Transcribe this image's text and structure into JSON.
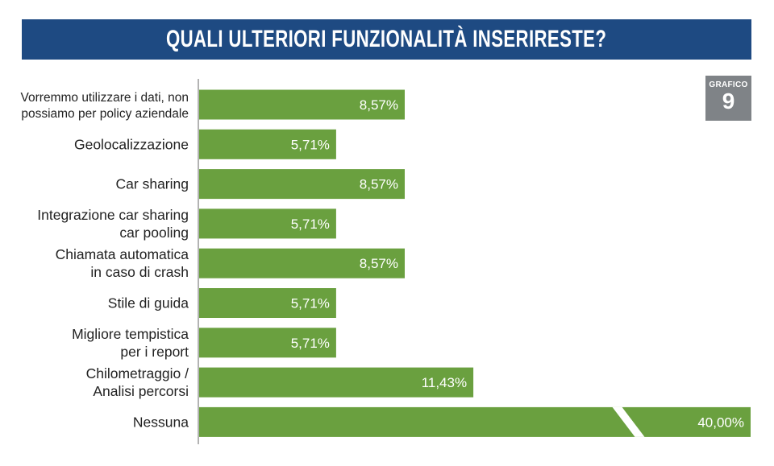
{
  "title": "QUALI ULTERIORI FUNZIONALITÀ INSERIRESTE?",
  "badge": {
    "label": "GRAFICO",
    "number": "9"
  },
  "colors": {
    "bar": "#6aa03f",
    "title_band": "#1e4a82",
    "badge": "#7f8387",
    "axis": "#9a9a9a"
  },
  "chart_data": {
    "type": "bar",
    "orientation": "horizontal",
    "categories": [
      "Vorremmo utilizzare i dati, non\npossiamo per policy aziendale",
      "Geolocalizzazione",
      "Car sharing",
      "Integrazione car sharing\ncar pooling",
      "Chiamata automatica\nin caso di crash",
      "Stile di guida",
      "Migliore tempistica\nper i report",
      "Chilometraggio /\nAnalisi percorsi",
      "Nessuna"
    ],
    "values": [
      8.57,
      5.71,
      8.57,
      5.71,
      8.57,
      5.71,
      5.71,
      11.43,
      40.0
    ],
    "value_labels": [
      "8,57%",
      "5,71%",
      "8,57%",
      "5,71%",
      "8,57%",
      "5,71%",
      "5,71%",
      "11,43%",
      "40,00%"
    ],
    "broken_axis_on": [
      8
    ]
  }
}
